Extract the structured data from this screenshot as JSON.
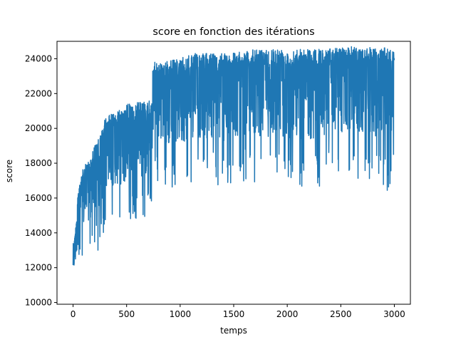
{
  "chart_data": {
    "type": "line",
    "title": "score en fonction des itérations",
    "xlabel": "temps",
    "ylabel": "score",
    "xlim": [
      -150,
      3150
    ],
    "ylim": [
      9900,
      25000
    ],
    "xticks": [
      0,
      500,
      1000,
      1500,
      2000,
      2500,
      3000
    ],
    "yticks": [
      10000,
      12000,
      14000,
      16000,
      18000,
      20000,
      22000,
      24000
    ],
    "grid": false,
    "color": "#1f77b4",
    "series": [
      {
        "name": "",
        "envelope": [
          {
            "x": 0,
            "high": 13500,
            "low": 10600
          },
          {
            "x": 20,
            "high": 14000,
            "low": 11000
          },
          {
            "x": 40,
            "high": 15800,
            "low": 11500
          },
          {
            "x": 60,
            "high": 17000,
            "low": 12300
          },
          {
            "x": 100,
            "high": 17800,
            "low": 12300
          },
          {
            "x": 150,
            "high": 18200,
            "low": 12800
          },
          {
            "x": 200,
            "high": 19000,
            "low": 13000
          },
          {
            "x": 250,
            "high": 19500,
            "low": 12600
          },
          {
            "x": 300,
            "high": 20600,
            "low": 14400
          },
          {
            "x": 400,
            "high": 21000,
            "low": 14500
          },
          {
            "x": 500,
            "high": 21400,
            "low": 14200
          },
          {
            "x": 600,
            "high": 21500,
            "low": 14800
          },
          {
            "x": 700,
            "high": 21600,
            "low": 14900
          },
          {
            "x": 740,
            "high": 21600,
            "low": 14900
          },
          {
            "x": 745,
            "high": 23800,
            "low": 16500
          },
          {
            "x": 800,
            "high": 23800,
            "low": 16800
          },
          {
            "x": 900,
            "high": 23900,
            "low": 16600
          },
          {
            "x": 1000,
            "high": 24000,
            "low": 16300
          },
          {
            "x": 1100,
            "high": 24300,
            "low": 16900
          },
          {
            "x": 1200,
            "high": 24300,
            "low": 16800
          },
          {
            "x": 1300,
            "high": 24300,
            "low": 16800
          },
          {
            "x": 1400,
            "high": 24400,
            "low": 16400
          },
          {
            "x": 1500,
            "high": 24400,
            "low": 16700
          },
          {
            "x": 1600,
            "high": 24500,
            "low": 17000
          },
          {
            "x": 1800,
            "high": 24600,
            "low": 16800
          },
          {
            "x": 2000,
            "high": 24600,
            "low": 16700
          },
          {
            "x": 2200,
            "high": 24600,
            "low": 16500
          },
          {
            "x": 2400,
            "high": 24600,
            "low": 16800
          },
          {
            "x": 2600,
            "high": 24700,
            "low": 17100
          },
          {
            "x": 2800,
            "high": 24700,
            "low": 16900
          },
          {
            "x": 2950,
            "high": 24600,
            "low": 16300
          },
          {
            "x": 3000,
            "high": 24600,
            "low": 17500
          }
        ]
      }
    ]
  }
}
